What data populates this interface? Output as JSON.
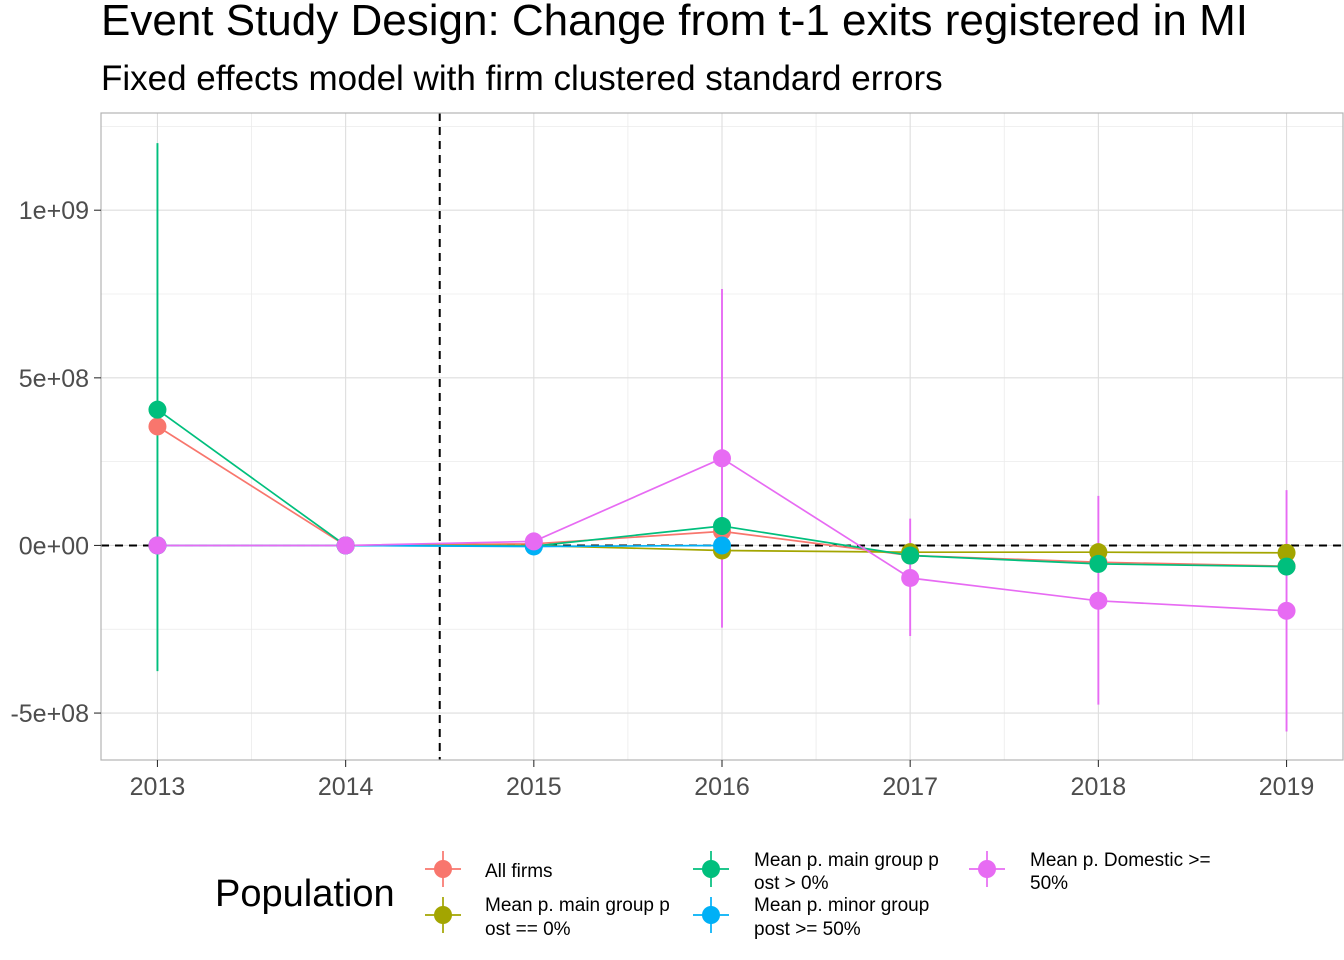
{
  "title": "Event Study Design: Change from t-1 exits registered in MI",
  "subtitle": "Fixed effects model with firm clustered standard errors",
  "chart_data": {
    "type": "line",
    "x": [
      2013,
      2014,
      2015,
      2016,
      2017,
      2018,
      2019
    ],
    "xlim": [
      2012.7,
      2019.3
    ],
    "ylim": [
      -640000000,
      1290000000
    ],
    "x_ticks": [
      "2013",
      "2014",
      "2015",
      "2016",
      "2017",
      "2018",
      "2019"
    ],
    "y_ticks": [
      {
        "value": 1000000000,
        "label": "1e+09"
      },
      {
        "value": 500000000,
        "label": "5e+08"
      },
      {
        "value": 0,
        "label": "0e+00"
      },
      {
        "value": -500000000,
        "label": "-5e+08"
      }
    ],
    "reference_lines": {
      "hline_y": 0,
      "vline_x": 2014.5,
      "style": "dashed"
    },
    "grid": true,
    "legend": {
      "title": "Population",
      "position": "bottom"
    },
    "series": [
      {
        "name": "All firms",
        "color": "#F8766D",
        "values": [
          355000000,
          0,
          5000000,
          42000000,
          -30000000,
          -50000000,
          -62000000
        ],
        "lower": [
          null,
          null,
          null,
          null,
          null,
          null,
          null
        ],
        "upper": [
          null,
          null,
          null,
          null,
          null,
          null,
          null
        ]
      },
      {
        "name": "Mean p. main group post == 0%",
        "color": "#A3A500",
        "values": [
          0,
          0,
          0,
          -15000000,
          -20000000,
          -20000000,
          -22000000
        ],
        "lower": [
          null,
          null,
          null,
          null,
          null,
          null,
          null
        ],
        "upper": [
          null,
          null,
          null,
          null,
          null,
          null,
          null
        ]
      },
      {
        "name": "Mean p. main group post > 0%",
        "color": "#00BF7D",
        "values": [
          405000000,
          0,
          -2000000,
          58000000,
          -30000000,
          -55000000,
          -63000000
        ],
        "lower": [
          -375000000,
          null,
          null,
          null,
          null,
          null,
          null
        ],
        "upper": [
          1200000000,
          null,
          null,
          null,
          null,
          null,
          null
        ]
      },
      {
        "name": "Mean p. minor group post >= 50%",
        "color": "#00B0F6",
        "values": [
          0,
          0,
          -3000000,
          0,
          null,
          null,
          null
        ],
        "lower": [
          null,
          null,
          null,
          null,
          null,
          null,
          null
        ],
        "upper": [
          null,
          null,
          null,
          null,
          null,
          null,
          null
        ]
      },
      {
        "name": "Mean p. Domestic >= 50%",
        "color": "#E76BF3",
        "values": [
          0,
          0,
          12000000,
          260000000,
          -97000000,
          -165000000,
          -195000000
        ],
        "lower": [
          null,
          null,
          null,
          -245000000,
          -270000000,
          -475000000,
          -555000000
        ],
        "upper": [
          null,
          null,
          null,
          765000000,
          80000000,
          148000000,
          165000000
        ]
      }
    ]
  }
}
